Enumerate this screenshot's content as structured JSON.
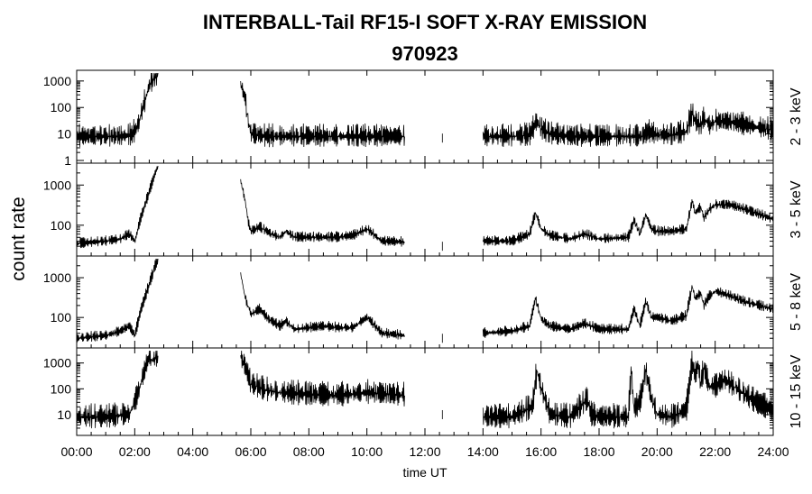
{
  "chart_data": {
    "type": "line",
    "title": "INTERBALL-Tail RF15-I SOFT X-RAY EMISSION",
    "subtitle": "970923",
    "xlabel": "time UT",
    "ylabel": "count rate",
    "x_unit": "hours UT",
    "xlim": [
      0,
      24
    ],
    "x_tick_labels": [
      "00:00",
      "02:00",
      "04:00",
      "06:00",
      "08:00",
      "10:00",
      "12:00",
      "14:00",
      "16:00",
      "18:00",
      "20:00",
      "22:00",
      "24:00"
    ],
    "y_scale": "log",
    "grid": false,
    "line_color": "#000000",
    "panels": [
      {
        "name": "2 - 3 keV",
        "ylim": [
          1,
          2000
        ],
        "y_ticks": [
          1,
          10,
          100,
          1000
        ],
        "y_tick_labels": [
          "1",
          "10",
          "100",
          "1000"
        ],
        "noise": 0.5,
        "x": [
          0.0,
          0.5,
          1.0,
          1.5,
          1.9,
          2.1,
          2.3,
          2.5,
          2.7,
          2.8,
          null,
          5.65,
          5.8,
          5.9,
          6.0,
          6.5,
          7.0,
          8.0,
          9.0,
          10.0,
          11.3,
          null,
          12.6,
          12.7,
          null,
          14.0,
          15.0,
          15.6,
          15.85,
          16.0,
          16.3,
          17.0,
          18.0,
          19.0,
          19.5,
          19.7,
          20.0,
          20.5,
          21.0,
          21.2,
          21.3,
          21.5,
          21.6,
          21.8,
          22.0,
          22.5,
          23.0,
          23.5,
          24.0
        ],
        "y": [
          8,
          8,
          8,
          8,
          9,
          20,
          120,
          700,
          1500,
          2000,
          null,
          700,
          200,
          30,
          10,
          8,
          8,
          8,
          8,
          8,
          8,
          null,
          7,
          7,
          null,
          8,
          8,
          9,
          30,
          15,
          10,
          8,
          8,
          8,
          8,
          12,
          9,
          9,
          12,
          60,
          30,
          20,
          40,
          20,
          30,
          28,
          22,
          17,
          14
        ]
      },
      {
        "name": "3 - 5 keV",
        "ylim": [
          20,
          3000
        ],
        "y_ticks": [
          100,
          1000
        ],
        "y_tick_labels": [
          "100",
          "1000"
        ],
        "noise": 0.15,
        "x": [
          0.0,
          1.0,
          1.5,
          1.8,
          2.0,
          2.2,
          2.5,
          2.7,
          2.8,
          null,
          5.65,
          5.8,
          5.9,
          6.0,
          6.3,
          6.7,
          7.0,
          7.2,
          7.5,
          8.0,
          9.0,
          9.5,
          10.0,
          10.5,
          11.3,
          null,
          12.6,
          12.7,
          null,
          14.0,
          15.0,
          15.6,
          15.8,
          16.0,
          16.3,
          17.0,
          17.5,
          18.0,
          19.0,
          19.2,
          19.4,
          19.6,
          19.8,
          20.0,
          20.5,
          21.0,
          21.2,
          21.3,
          21.5,
          21.6,
          21.8,
          22.0,
          22.5,
          23.0,
          24.0
        ],
        "y": [
          35,
          40,
          45,
          60,
          40,
          150,
          700,
          2000,
          3000,
          null,
          1200,
          400,
          120,
          70,
          90,
          60,
          50,
          70,
          50,
          50,
          50,
          55,
          80,
          40,
          38,
          null,
          30,
          30,
          null,
          40,
          40,
          60,
          200,
          80,
          55,
          45,
          60,
          45,
          50,
          130,
          60,
          180,
          80,
          70,
          70,
          80,
          400,
          200,
          280,
          150,
          250,
          320,
          320,
          250,
          140
        ]
      },
      {
        "name": "5 - 8 keV",
        "ylim": [
          20,
          3000
        ],
        "y_ticks": [
          100,
          1000
        ],
        "y_tick_labels": [
          "100",
          "1000"
        ],
        "noise": 0.15,
        "x": [
          0.0,
          1.0,
          1.5,
          1.8,
          2.0,
          2.2,
          2.5,
          2.7,
          2.8,
          null,
          5.65,
          5.8,
          6.0,
          6.3,
          6.6,
          7.0,
          7.2,
          7.5,
          8.0,
          8.5,
          9.0,
          9.5,
          10.0,
          10.5,
          11.3,
          null,
          12.6,
          12.7,
          null,
          14.0,
          15.0,
          15.6,
          15.8,
          16.0,
          16.3,
          17.0,
          17.5,
          18.0,
          19.0,
          19.2,
          19.4,
          19.6,
          19.8,
          20.0,
          20.5,
          21.0,
          21.2,
          21.3,
          21.5,
          21.6,
          21.8,
          22.0,
          22.5,
          23.0,
          24.0
        ],
        "y": [
          30,
          35,
          45,
          60,
          35,
          150,
          700,
          2000,
          3000,
          null,
          1200,
          300,
          120,
          160,
          90,
          60,
          80,
          50,
          55,
          60,
          55,
          55,
          100,
          40,
          35,
          null,
          30,
          30,
          null,
          40,
          45,
          60,
          300,
          90,
          60,
          50,
          70,
          50,
          50,
          160,
          60,
          250,
          100,
          100,
          80,
          110,
          600,
          300,
          400,
          200,
          350,
          450,
          350,
          250,
          160
        ]
      },
      {
        "name": "10 - 15 keV",
        "ylim": [
          2,
          3000
        ],
        "y_ticks": [
          10,
          100,
          1000
        ],
        "y_tick_labels": [
          "10",
          "100",
          "1000"
        ],
        "noise": 0.55,
        "x": [
          0.0,
          1.0,
          1.8,
          2.0,
          2.2,
          2.4,
          2.5,
          2.6,
          2.8,
          null,
          5.65,
          5.8,
          6.0,
          6.5,
          7.0,
          8.0,
          9.0,
          10.0,
          11.3,
          null,
          12.6,
          12.7,
          null,
          14.0,
          15.0,
          15.7,
          15.85,
          16.0,
          16.3,
          17.0,
          17.6,
          17.7,
          18.0,
          19.0,
          19.1,
          19.2,
          19.4,
          19.6,
          19.8,
          20.0,
          20.5,
          21.0,
          21.2,
          21.3,
          21.4,
          21.5,
          21.6,
          21.8,
          22.0,
          22.3,
          22.5,
          23.0,
          23.5,
          24.0
        ],
        "y": [
          8,
          8,
          10,
          30,
          150,
          900,
          1700,
          1200,
          1900,
          null,
          1700,
          700,
          150,
          90,
          70,
          60,
          55,
          70,
          55,
          null,
          10,
          10,
          null,
          8,
          8,
          20,
          500,
          100,
          10,
          8,
          40,
          10,
          8,
          8,
          500,
          15,
          30,
          500,
          40,
          10,
          8,
          15,
          1000,
          300,
          800,
          150,
          600,
          120,
          120,
          220,
          160,
          60,
          25,
          15
        ]
      }
    ]
  }
}
